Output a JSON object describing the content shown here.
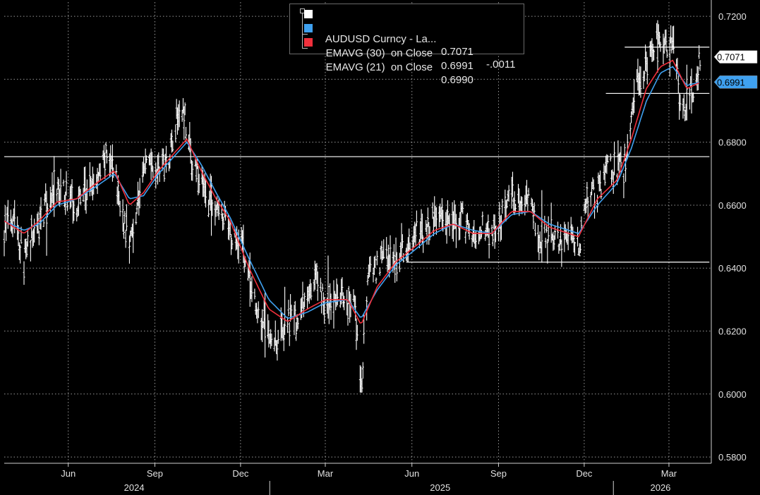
{
  "legend": {
    "items": [
      {
        "label": "AUDUSD Curncy - La...",
        "value": "0.7071",
        "change": "-.0011",
        "color": "#ffffff"
      },
      {
        "label": "EMAVG (30)  on Close",
        "value": "0.6991",
        "change": "",
        "color": "#3fa1f0"
      },
      {
        "label": "EMAVG (21)  on Close",
        "value": "0.6990",
        "change": "",
        "color": "#f0303c"
      }
    ]
  },
  "chart_data": {
    "type": "line",
    "title": "",
    "xlabel": "",
    "ylabel": "",
    "x_range": [
      "2024-03-25",
      "2026-04-15"
    ],
    "ylim": [
      0.578,
      0.7245
    ],
    "grid": true,
    "y_axis_position": "right",
    "y_ticks": [
      "0.7200",
      "0.7000",
      "0.6800",
      "0.6600",
      "0.6400",
      "0.6200",
      "0.6000",
      "0.5800"
    ],
    "x_ticks": [
      {
        "label": "Jun",
        "date": "2024-06-01"
      },
      {
        "label": "Sep",
        "date": "2024-09-01"
      },
      {
        "label": "Dec",
        "date": "2024-12-01"
      },
      {
        "label": "Mar",
        "date": "2025-03-01"
      },
      {
        "label": "Jun",
        "date": "2025-06-01"
      },
      {
        "label": "Sep",
        "date": "2025-09-01"
      },
      {
        "label": "Dec",
        "date": "2025-12-01"
      },
      {
        "label": "Mar",
        "date": "2026-03-01"
      }
    ],
    "year_labels": [
      {
        "label": "2024",
        "date": "2024-08-10"
      },
      {
        "label": "2025",
        "date": "2025-07-01"
      },
      {
        "label": "2026",
        "date": "2026-02-20"
      }
    ],
    "year_dividers": [
      "2025-01-01",
      "2026-01-01"
    ],
    "series": [
      {
        "name": "AUDUSD Curncy - La...",
        "color": "#ffffff",
        "style": "bars",
        "points": [
          [
            "2024-03-25",
            0.653
          ],
          [
            "2024-04-05",
            0.658
          ],
          [
            "2024-04-15",
            0.642
          ],
          [
            "2024-04-22",
            0.65
          ],
          [
            "2024-05-01",
            0.654
          ],
          [
            "2024-05-10",
            0.661
          ],
          [
            "2024-05-20",
            0.664
          ],
          [
            "2024-06-01",
            0.663
          ],
          [
            "2024-06-10",
            0.661
          ],
          [
            "2024-06-20",
            0.665
          ],
          [
            "2024-07-01",
            0.667
          ],
          [
            "2024-07-10",
            0.675
          ],
          [
            "2024-07-20",
            0.672
          ],
          [
            "2024-07-28",
            0.657
          ],
          [
            "2024-08-05",
            0.648
          ],
          [
            "2024-08-15",
            0.662
          ],
          [
            "2024-08-25",
            0.676
          ],
          [
            "2024-09-05",
            0.671
          ],
          [
            "2024-09-15",
            0.675
          ],
          [
            "2024-09-25",
            0.689
          ],
          [
            "2024-10-01",
            0.692
          ],
          [
            "2024-10-10",
            0.674
          ],
          [
            "2024-10-20",
            0.666
          ],
          [
            "2024-10-30",
            0.661
          ],
          [
            "2024-11-10",
            0.657
          ],
          [
            "2024-11-20",
            0.651
          ],
          [
            "2024-11-30",
            0.65
          ],
          [
            "2024-12-10",
            0.637
          ],
          [
            "2024-12-20",
            0.625
          ],
          [
            "2024-12-31",
            0.62
          ],
          [
            "2025-01-10",
            0.617
          ],
          [
            "2025-01-20",
            0.624
          ],
          [
            "2025-01-31",
            0.623
          ],
          [
            "2025-02-10",
            0.63
          ],
          [
            "2025-02-20",
            0.636
          ],
          [
            "2025-03-01",
            0.628
          ],
          [
            "2025-03-15",
            0.631
          ],
          [
            "2025-03-25",
            0.629
          ],
          [
            "2025-04-01",
            0.628
          ],
          [
            "2025-04-08",
            0.601
          ],
          [
            "2025-04-15",
            0.636
          ],
          [
            "2025-04-25",
            0.64
          ],
          [
            "2025-05-05",
            0.645
          ],
          [
            "2025-05-15",
            0.642
          ],
          [
            "2025-05-25",
            0.646
          ],
          [
            "2025-06-05",
            0.651
          ],
          [
            "2025-06-15",
            0.652
          ],
          [
            "2025-06-25",
            0.655
          ],
          [
            "2025-07-05",
            0.657
          ],
          [
            "2025-07-15",
            0.652
          ],
          [
            "2025-07-25",
            0.656
          ],
          [
            "2025-08-05",
            0.649
          ],
          [
            "2025-08-15",
            0.652
          ],
          [
            "2025-08-25",
            0.651
          ],
          [
            "2025-09-05",
            0.656
          ],
          [
            "2025-09-15",
            0.665
          ],
          [
            "2025-09-25",
            0.659
          ],
          [
            "2025-10-05",
            0.66
          ],
          [
            "2025-10-15",
            0.649
          ],
          [
            "2025-10-25",
            0.651
          ],
          [
            "2025-11-05",
            0.65
          ],
          [
            "2025-11-15",
            0.651
          ],
          [
            "2025-11-25",
            0.647
          ],
          [
            "2025-12-05",
            0.662
          ],
          [
            "2025-12-15",
            0.664
          ],
          [
            "2025-12-25",
            0.671
          ],
          [
            "2026-01-05",
            0.672
          ],
          [
            "2026-01-12",
            0.671
          ],
          [
            "2026-01-20",
            0.685
          ],
          [
            "2026-01-28",
            0.702
          ],
          [
            "2026-02-05",
            0.703
          ],
          [
            "2026-02-15",
            0.711
          ],
          [
            "2026-02-25",
            0.709
          ],
          [
            "2026-03-05",
            0.711
          ],
          [
            "2026-03-12",
            0.695
          ],
          [
            "2026-03-20",
            0.69
          ],
          [
            "2026-03-28",
            0.699
          ],
          [
            "2026-04-03",
            0.707
          ]
        ]
      },
      {
        "name": "EMAVG (30)  on Close",
        "color": "#3fa1f0",
        "style": "line",
        "points": [
          [
            "2024-03-25",
            0.655
          ],
          [
            "2024-04-15",
            0.652
          ],
          [
            "2024-05-01",
            0.654
          ],
          [
            "2024-05-20",
            0.66
          ],
          [
            "2024-06-10",
            0.662
          ],
          [
            "2024-07-01",
            0.666
          ],
          [
            "2024-07-20",
            0.67
          ],
          [
            "2024-08-05",
            0.662
          ],
          [
            "2024-08-20",
            0.663
          ],
          [
            "2024-09-05",
            0.67
          ],
          [
            "2024-09-20",
            0.675
          ],
          [
            "2024-10-05",
            0.68
          ],
          [
            "2024-10-20",
            0.673
          ],
          [
            "2024-11-05",
            0.664
          ],
          [
            "2024-11-20",
            0.656
          ],
          [
            "2024-12-10",
            0.643
          ],
          [
            "2024-12-31",
            0.63
          ],
          [
            "2025-01-20",
            0.624
          ],
          [
            "2025-02-10",
            0.626
          ],
          [
            "2025-03-01",
            0.629
          ],
          [
            "2025-03-25",
            0.63
          ],
          [
            "2025-04-08",
            0.624
          ],
          [
            "2025-04-25",
            0.633
          ],
          [
            "2025-05-15",
            0.641
          ],
          [
            "2025-06-05",
            0.646
          ],
          [
            "2025-06-25",
            0.651
          ],
          [
            "2025-07-15",
            0.654
          ],
          [
            "2025-08-05",
            0.652
          ],
          [
            "2025-08-25",
            0.651
          ],
          [
            "2025-09-15",
            0.657
          ],
          [
            "2025-10-05",
            0.658
          ],
          [
            "2025-10-25",
            0.654
          ],
          [
            "2025-11-25",
            0.651
          ],
          [
            "2025-12-15",
            0.66
          ],
          [
            "2026-01-05",
            0.667
          ],
          [
            "2026-01-20",
            0.678
          ],
          [
            "2026-02-05",
            0.693
          ],
          [
            "2026-02-20",
            0.702
          ],
          [
            "2026-03-05",
            0.704
          ],
          [
            "2026-03-20",
            0.698
          ],
          [
            "2026-04-03",
            0.6991
          ]
        ]
      },
      {
        "name": "EMAVG (21)  on Close",
        "color": "#f0303c",
        "style": "line",
        "points": [
          [
            "2024-03-25",
            0.655
          ],
          [
            "2024-04-15",
            0.651
          ],
          [
            "2024-05-01",
            0.655
          ],
          [
            "2024-05-20",
            0.661
          ],
          [
            "2024-06-10",
            0.662
          ],
          [
            "2024-07-01",
            0.667
          ],
          [
            "2024-07-20",
            0.671
          ],
          [
            "2024-08-05",
            0.66
          ],
          [
            "2024-08-20",
            0.664
          ],
          [
            "2024-09-05",
            0.671
          ],
          [
            "2024-09-20",
            0.676
          ],
          [
            "2024-10-05",
            0.681
          ],
          [
            "2024-10-20",
            0.671
          ],
          [
            "2024-11-05",
            0.662
          ],
          [
            "2024-11-20",
            0.655
          ],
          [
            "2024-12-10",
            0.64
          ],
          [
            "2024-12-31",
            0.627
          ],
          [
            "2025-01-20",
            0.623
          ],
          [
            "2025-02-10",
            0.627
          ],
          [
            "2025-03-01",
            0.63
          ],
          [
            "2025-03-25",
            0.63
          ],
          [
            "2025-04-08",
            0.622
          ],
          [
            "2025-04-25",
            0.634
          ],
          [
            "2025-05-15",
            0.642
          ],
          [
            "2025-06-05",
            0.647
          ],
          [
            "2025-06-25",
            0.652
          ],
          [
            "2025-07-15",
            0.654
          ],
          [
            "2025-08-05",
            0.651
          ],
          [
            "2025-08-25",
            0.651
          ],
          [
            "2025-09-15",
            0.658
          ],
          [
            "2025-10-05",
            0.658
          ],
          [
            "2025-10-25",
            0.653
          ],
          [
            "2025-11-25",
            0.65
          ],
          [
            "2025-12-15",
            0.662
          ],
          [
            "2026-01-05",
            0.668
          ],
          [
            "2026-01-20",
            0.681
          ],
          [
            "2026-02-05",
            0.697
          ],
          [
            "2026-02-20",
            0.704
          ],
          [
            "2026-03-05",
            0.706
          ],
          [
            "2026-03-20",
            0.697
          ],
          [
            "2026-04-03",
            0.699
          ]
        ]
      }
    ],
    "horizontal_lines": [
      {
        "y": 0.7102,
        "x_from": "2026-01-13",
        "x_to": "2026-04-13"
      },
      {
        "y": 0.6955,
        "x_from": "2025-12-24",
        "x_to": "2026-04-13"
      },
      {
        "y": 0.6754,
        "x_from": "2024-03-25",
        "x_to": "2026-04-13"
      },
      {
        "y": 0.6419,
        "x_from": "2025-05-26",
        "x_to": "2026-04-13"
      }
    ],
    "value_tags": [
      {
        "text": "0.7071",
        "y": 0.7071,
        "bg": "#ffffff",
        "fg": "#000000"
      },
      {
        "text": "0.6991",
        "y": 0.6991,
        "bg": "#3fa1f0",
        "fg": "#000000"
      }
    ]
  }
}
